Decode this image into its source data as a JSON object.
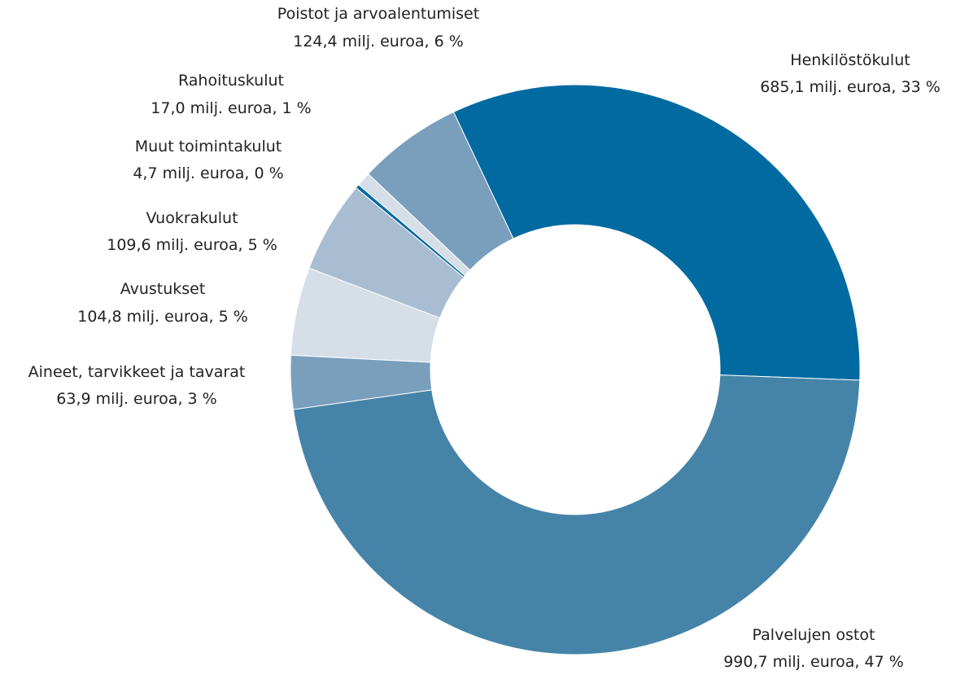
{
  "chart_data": {
    "type": "donut",
    "categories": [
      "Henkilöstökulut",
      "Palvelujen ostot",
      "Aineet, tarvikkeet ja tavarat",
      "Avustukset",
      "Vuokrakulut",
      "Muut toimintakulut",
      "Rahoituskulut",
      "Poistot ja arvoalentumiset"
    ],
    "values": [
      685.1,
      990.7,
      63.9,
      104.8,
      109.6,
      4.7,
      17.0,
      124.4
    ],
    "value_labels": [
      "685,1 milj. euroa, 33 %",
      "990,7 milj. euroa, 47 %",
      "63,9 milj. euroa, 3 %",
      "104,8 milj. euroa, 5 %",
      "109,6 milj. euroa, 5 %",
      "4,7 milj. euroa, 0 %",
      "17,0 milj. euroa, 1 %",
      "124,4 milj. euroa, 6 %"
    ],
    "colors": [
      "#006aa1",
      "#4584a8",
      "#7a9fbd",
      "#d6dee8",
      "#a9bdd2",
      "#006aa1",
      "#d6dee8",
      "#7a9fbd"
    ]
  }
}
